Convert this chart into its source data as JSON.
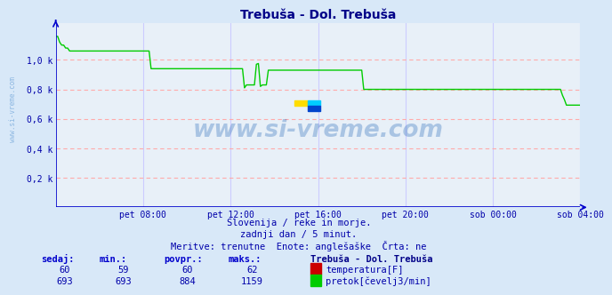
{
  "title": "Trebuša - Dol. Trebuša",
  "bg_color": "#d8e8f8",
  "plot_bg_color": "#e8f0f8",
  "grid_color_h": "#ffaaaa",
  "grid_color_v": "#ccccff",
  "axis_color": "#0000cc",
  "text_color": "#0000aa",
  "subtitle_lines": [
    "Slovenija / reke in morje.",
    "zadnji dan / 5 minut.",
    "Meritve: trenutne  Enote: anglešaške  Črta: ne"
  ],
  "xlabel_ticks": [
    "pet 08:00",
    "pet 12:00",
    "pet 16:00",
    "pet 20:00",
    "sob 00:00",
    "sob 04:00"
  ],
  "ylabel_ticks": [
    "0,2 k",
    "0,4 k",
    "0,6 k",
    "0,8 k",
    "1,0 k"
  ],
  "ylim": [
    0,
    1250
  ],
  "xlim": [
    0,
    288
  ],
  "tick_positions_x": [
    48,
    96,
    144,
    192,
    240,
    288
  ],
  "tick_positions_y": [
    200,
    400,
    600,
    800,
    1000
  ],
  "flow_color": "#00cc00",
  "temp_color": "#cc0000",
  "watermark": "www.si-vreme.com",
  "watermark_color": "#1a5fb4",
  "watermark_alpha": 0.3,
  "side_watermark": "www.si-vreme.com",
  "side_watermark_color": "#4488cc",
  "side_watermark_alpha": 0.5,
  "legend_title": "Trebuša - Dol. Trebuša",
  "legend_items": [
    {
      "label": "temperatura[F]",
      "color": "#cc0000"
    },
    {
      "label": "pretok[čevelj3/min]",
      "color": "#00cc00"
    }
  ],
  "table_headers": [
    "sedaj:",
    "min.:",
    "povpr.:",
    "maks.:"
  ],
  "table_temp": [
    60,
    59,
    60,
    62
  ],
  "table_flow": [
    693,
    693,
    884,
    1159
  ],
  "flow_data": [
    1159,
    1159,
    1120,
    1100,
    1100,
    1080,
    1080,
    1060,
    1060,
    1060,
    1060,
    1060,
    1060,
    1060,
    1060,
    1060,
    1060,
    1060,
    1060,
    1060,
    1060,
    1060,
    1060,
    1060,
    1060,
    1060,
    1060,
    1060,
    1060,
    1060,
    1060,
    1060,
    1060,
    1060,
    1060,
    1060,
    1060,
    1060,
    1060,
    1060,
    1060,
    1060,
    1060,
    1060,
    1060,
    1060,
    1060,
    1060,
    940,
    940,
    940,
    940,
    940,
    940,
    940,
    940,
    940,
    940,
    940,
    940,
    940,
    940,
    940,
    940,
    940,
    940,
    940,
    940,
    940,
    940,
    940,
    940,
    940,
    940,
    940,
    940,
    940,
    940,
    940,
    940,
    940,
    940,
    940,
    940,
    940,
    940,
    940,
    940,
    940,
    940,
    940,
    940,
    940,
    940,
    940,
    810,
    830,
    830,
    830,
    830,
    830,
    970,
    975,
    820,
    830,
    830,
    830,
    930,
    930,
    930,
    930,
    930,
    930,
    930,
    930,
    930,
    930,
    930,
    930,
    930,
    930,
    930,
    930,
    930,
    930,
    930,
    930,
    930,
    930,
    930,
    930,
    930,
    930,
    930,
    930,
    930,
    930,
    930,
    930,
    930,
    930,
    930,
    930,
    930,
    930,
    930,
    930,
    930,
    930,
    930,
    930,
    930,
    930,
    930,
    930,
    800,
    800,
    800,
    800,
    800,
    800,
    800,
    800,
    800,
    800,
    800,
    800,
    800,
    800,
    800,
    800,
    800,
    800,
    800,
    800,
    800,
    800,
    800,
    800,
    800,
    800,
    800,
    800,
    800,
    800,
    800,
    800,
    800,
    800,
    800,
    800,
    800,
    800,
    800,
    800,
    800,
    800,
    800,
    800,
    800,
    800,
    800,
    800,
    800,
    800,
    800,
    800,
    800,
    800,
    800,
    800,
    800,
    800,
    800,
    800,
    800,
    800,
    800,
    800,
    800,
    800,
    800,
    800,
    800,
    800,
    800,
    800,
    800,
    800,
    800,
    800,
    800,
    800,
    800,
    800,
    800,
    800,
    800,
    800,
    800,
    800,
    800,
    800,
    800,
    800,
    800,
    800,
    800,
    800,
    800,
    800,
    800,
    800,
    800,
    800,
    760,
    730,
    693,
    693,
    693,
    693,
    693,
    693,
    693,
    693
  ]
}
